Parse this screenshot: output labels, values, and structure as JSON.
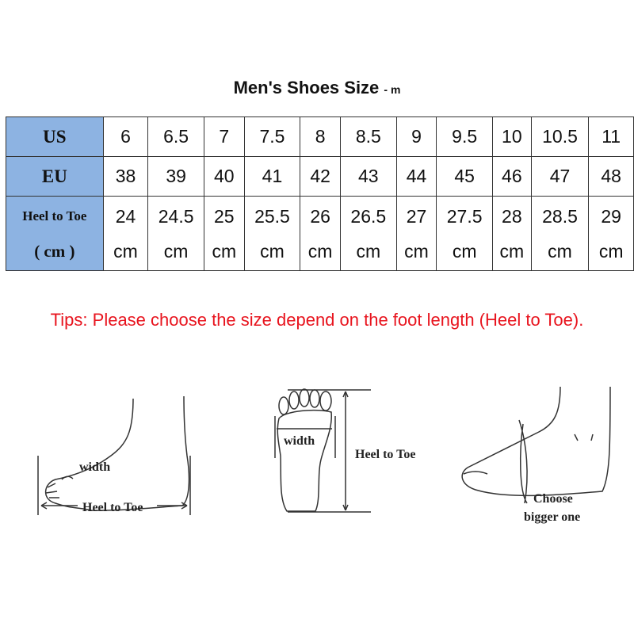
{
  "title": {
    "main": "Men's Shoes Size",
    "suffix": "- m"
  },
  "table": {
    "headers": {
      "us": "US",
      "eu": "EU",
      "length_line1": "Heel to Toe",
      "length_line2": "( cm )"
    },
    "us": [
      "6",
      "6.5",
      "7",
      "7.5",
      "8",
      "8.5",
      "9",
      "9.5",
      "10",
      "10.5",
      "11"
    ],
    "eu": [
      "38",
      "39",
      "40",
      "41",
      "42",
      "43",
      "44",
      "45",
      "46",
      "47",
      "48"
    ],
    "length": [
      "24",
      "24.5",
      "25",
      "25.5",
      "26",
      "26.5",
      "27",
      "27.5",
      "28",
      "28.5",
      "29"
    ],
    "length_unit": "cm",
    "header_color": "#8db3e2"
  },
  "tips": "Tips: Please choose the size depend on the foot length (Heel to Toe).",
  "tips_color": "#e8141e",
  "diagrams": {
    "side": {
      "width": "width",
      "length": "Heel to Toe"
    },
    "sole": {
      "width": "width",
      "length": "Heel to Toe"
    },
    "fit": {
      "line1": "Choose",
      "line2": "bigger one"
    }
  }
}
